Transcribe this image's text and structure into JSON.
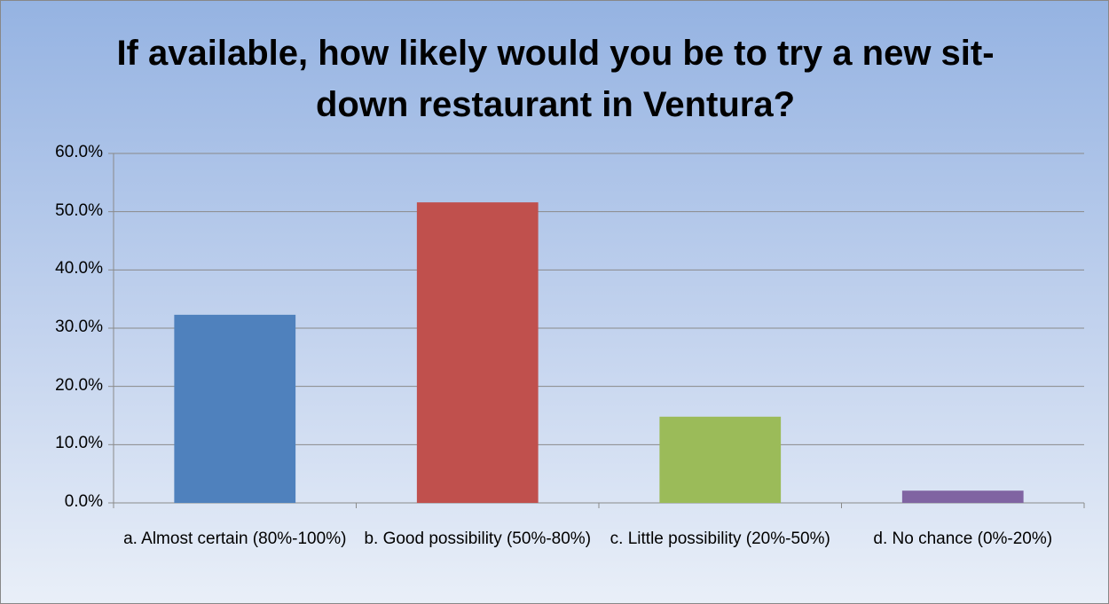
{
  "chart_data": {
    "type": "bar",
    "title": "If available, how likely would you be to try a new sit-down restaurant in Ventura?",
    "categories": [
      "a. Almost certain (80%-100%)",
      "b. Good possibility (50%-80%)",
      "c. Little possibility (20%-50%)",
      "d. No chance (0%-20%)"
    ],
    "values": [
      32.3,
      51.6,
      14.8,
      2.1
    ],
    "colors": [
      "#4f81bd",
      "#c0504d",
      "#9bbb59",
      "#8064a2"
    ],
    "ylim": [
      0,
      60
    ],
    "yticks": [
      {
        "value": 0,
        "label": "0.0%"
      },
      {
        "value": 10,
        "label": "10.0%"
      },
      {
        "value": 20,
        "label": "20.0%"
      },
      {
        "value": 30,
        "label": "30.0%"
      },
      {
        "value": 40,
        "label": "40.0%"
      },
      {
        "value": 50,
        "label": "50.0%"
      },
      {
        "value": 60,
        "label": "60.0%"
      }
    ],
    "grid": true
  }
}
